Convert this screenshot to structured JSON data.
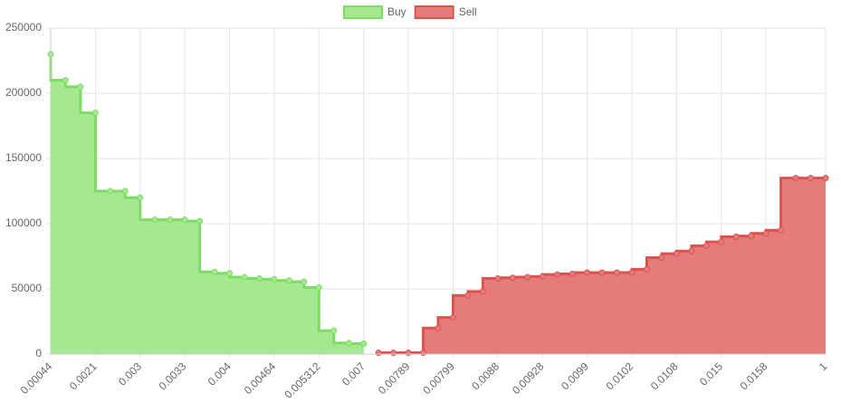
{
  "chart_data": {
    "type": "stepped-area",
    "categories": [
      "0.00044",
      null,
      null,
      "0.0021",
      null,
      null,
      "0.003",
      null,
      null,
      "0.0033",
      null,
      null,
      "0.004",
      null,
      null,
      "0.00464",
      null,
      null,
      "0.005312",
      null,
      null,
      "0.007",
      null,
      null,
      "0.00789",
      null,
      null,
      "0.00799",
      null,
      null,
      "0.0088",
      null,
      null,
      "0.00928",
      null,
      null,
      "0.0099",
      null,
      null,
      "0.0102",
      null,
      null,
      "0.0108",
      null,
      null,
      "0.015",
      null,
      null,
      "0.0158",
      null,
      null,
      null,
      "1"
    ],
    "series": [
      {
        "name": "Buy",
        "color": "#a6e892",
        "border": "#7ddc63",
        "values": [
          230000,
          210000,
          205000,
          185000,
          125000,
          125000,
          120000,
          103000,
          103000,
          103000,
          102000,
          63000,
          62000,
          59000,
          58000,
          57500,
          56500,
          55500,
          51000,
          18000,
          8500,
          8000,
          null,
          null,
          null,
          null,
          null,
          null,
          null,
          null,
          null,
          null,
          null,
          null,
          null,
          null,
          null,
          null,
          null,
          null,
          null,
          null,
          null,
          null,
          null,
          null,
          null,
          null,
          null,
          null,
          null,
          null,
          null
        ]
      },
      {
        "name": "Sell",
        "color": "#e57b7b",
        "border": "#d9534f",
        "values": [
          null,
          null,
          null,
          null,
          null,
          null,
          null,
          null,
          null,
          null,
          null,
          null,
          null,
          null,
          null,
          null,
          null,
          null,
          null,
          null,
          null,
          null,
          1000,
          1000,
          1000,
          1000,
          20000,
          28000,
          45000,
          48000,
          58000,
          58500,
          59000,
          59500,
          61000,
          61500,
          62500,
          62500,
          62500,
          62500,
          65000,
          74000,
          77000,
          79000,
          83000,
          86000,
          90000,
          90500,
          92500,
          95000,
          135000,
          135000,
          135000
        ]
      }
    ],
    "ylim": [
      0,
      250000
    ],
    "yticks": [
      0,
      50000,
      100000,
      150000,
      200000,
      250000
    ],
    "grid": true
  }
}
